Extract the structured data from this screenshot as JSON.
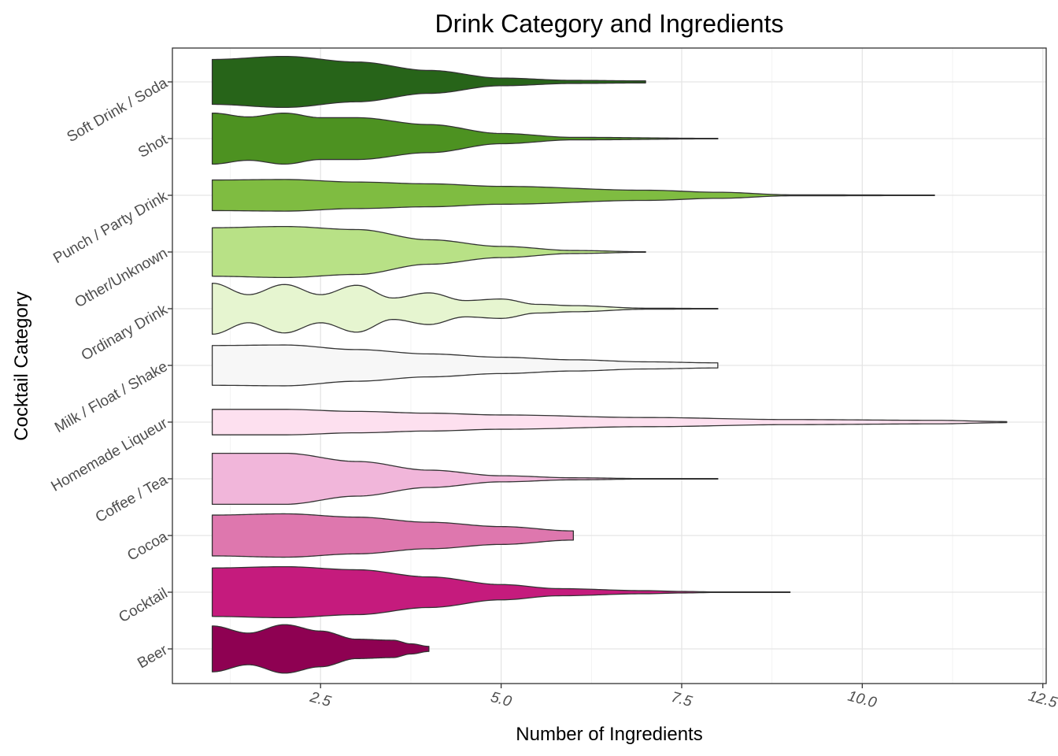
{
  "chart_data": {
    "type": "violin",
    "title": "Drink Category and Ingredients",
    "xlabel": "Number of Ingredients",
    "ylabel": "Cocktail Category",
    "xlim": [
      0.5,
      12.5
    ],
    "x_ticks": [
      2.5,
      5.0,
      7.5,
      10.0,
      12.5
    ],
    "x_tick_labels": [
      "2.5",
      "5.0",
      "7.5",
      "10.0",
      "12.5"
    ],
    "grid": true,
    "legend": "none",
    "categories": [
      "Beer",
      "Cocktail",
      "Cocoa",
      "Coffee / Tea",
      "Homemade Liqueur",
      "Milk / Float / Shake",
      "Ordinary Drink",
      "Other/Unknown",
      "Punch / Party Drink",
      "Shot",
      "Soft Drink / Soda"
    ],
    "series": [
      {
        "category": "Beer",
        "color": "#8e0152",
        "range": [
          1,
          4
        ],
        "profile": [
          [
            1,
            0.9
          ],
          [
            1.5,
            0.62
          ],
          [
            2,
            0.95
          ],
          [
            2.5,
            0.7
          ],
          [
            3,
            0.38
          ],
          [
            3.5,
            0.34
          ],
          [
            3.75,
            0.2
          ],
          [
            4,
            0.1
          ]
        ]
      },
      {
        "category": "Cocktail",
        "color": "#c51b7d",
        "range": [
          1,
          9
        ],
        "profile": [
          [
            1,
            0.95
          ],
          [
            2,
            1.0
          ],
          [
            3,
            0.88
          ],
          [
            4,
            0.6
          ],
          [
            5,
            0.3
          ],
          [
            5.8,
            0.14
          ],
          [
            7,
            0.06
          ],
          [
            7.5,
            0.03
          ],
          [
            8,
            0.01
          ],
          [
            9,
            0.01
          ]
        ]
      },
      {
        "category": "Cocoa",
        "color": "#de77ae",
        "range": [
          1,
          6
        ],
        "profile": [
          [
            1,
            0.8
          ],
          [
            2,
            0.85
          ],
          [
            3,
            0.72
          ],
          [
            4,
            0.52
          ],
          [
            5,
            0.35
          ],
          [
            6,
            0.18
          ]
        ]
      },
      {
        "category": "Coffee / Tea",
        "color": "#f1b6da",
        "range": [
          1,
          8
        ],
        "profile": [
          [
            1,
            1.0
          ],
          [
            2,
            1.0
          ],
          [
            3,
            0.68
          ],
          [
            4,
            0.34
          ],
          [
            5,
            0.12
          ],
          [
            6,
            0.04
          ],
          [
            7,
            0.01
          ],
          [
            8,
            0.01
          ]
        ]
      },
      {
        "category": "Homemade Liqueur",
        "color": "#fde0ef",
        "range": [
          1,
          12
        ],
        "profile": [
          [
            1,
            0.5
          ],
          [
            2,
            0.5
          ],
          [
            3,
            0.42
          ],
          [
            4,
            0.35
          ],
          [
            5,
            0.28
          ],
          [
            7,
            0.18
          ],
          [
            9,
            0.1
          ],
          [
            11,
            0.07
          ],
          [
            12,
            0.02
          ]
        ]
      },
      {
        "category": "Milk / Float / Shake",
        "color": "#f7f7f7",
        "range": [
          1,
          8
        ],
        "profile": [
          [
            1,
            0.78
          ],
          [
            2,
            0.8
          ],
          [
            3,
            0.62
          ],
          [
            4,
            0.45
          ],
          [
            5,
            0.32
          ],
          [
            6,
            0.22
          ],
          [
            7,
            0.14
          ],
          [
            8,
            0.1
          ]
        ]
      },
      {
        "category": "Ordinary Drink",
        "color": "#e6f5d0",
        "range": [
          1,
          8
        ],
        "profile": [
          [
            1,
            1.0
          ],
          [
            1.5,
            0.55
          ],
          [
            2,
            0.95
          ],
          [
            2.5,
            0.55
          ],
          [
            3,
            0.92
          ],
          [
            3.5,
            0.42
          ],
          [
            4,
            0.62
          ],
          [
            4.5,
            0.32
          ],
          [
            5,
            0.38
          ],
          [
            5.5,
            0.17
          ],
          [
            6,
            0.12
          ],
          [
            7,
            0.02
          ],
          [
            8,
            0.01
          ]
        ]
      },
      {
        "category": "Other/Unknown",
        "color": "#b8e186",
        "range": [
          1,
          7
        ],
        "profile": [
          [
            1,
            0.95
          ],
          [
            2,
            1.0
          ],
          [
            3,
            0.88
          ],
          [
            4,
            0.48
          ],
          [
            5,
            0.22
          ],
          [
            6,
            0.06
          ],
          [
            7,
            0.01
          ]
        ]
      },
      {
        "category": "Punch / Party Drink",
        "color": "#7fbc41",
        "range": [
          1,
          11
        ],
        "profile": [
          [
            1,
            0.6
          ],
          [
            2,
            0.62
          ],
          [
            3,
            0.52
          ],
          [
            4,
            0.45
          ],
          [
            5,
            0.35
          ],
          [
            7,
            0.2
          ],
          [
            8,
            0.12
          ],
          [
            9,
            0.02
          ],
          [
            11,
            0.01
          ]
        ]
      },
      {
        "category": "Shot",
        "color": "#4d9221",
        "range": [
          1,
          8
        ],
        "profile": [
          [
            1,
            1.0
          ],
          [
            1.5,
            0.85
          ],
          [
            2,
            1.0
          ],
          [
            2.5,
            0.82
          ],
          [
            3,
            0.82
          ],
          [
            4,
            0.55
          ],
          [
            5,
            0.2
          ],
          [
            6,
            0.05
          ],
          [
            8,
            0.01
          ]
        ]
      },
      {
        "category": "Soft Drink / Soda",
        "color": "#276419",
        "range": [
          1,
          7
        ],
        "profile": [
          [
            1,
            0.88
          ],
          [
            2,
            1.0
          ],
          [
            3,
            0.78
          ],
          [
            4,
            0.45
          ],
          [
            5,
            0.15
          ],
          [
            6,
            0.06
          ],
          [
            7,
            0.04
          ]
        ]
      }
    ]
  }
}
